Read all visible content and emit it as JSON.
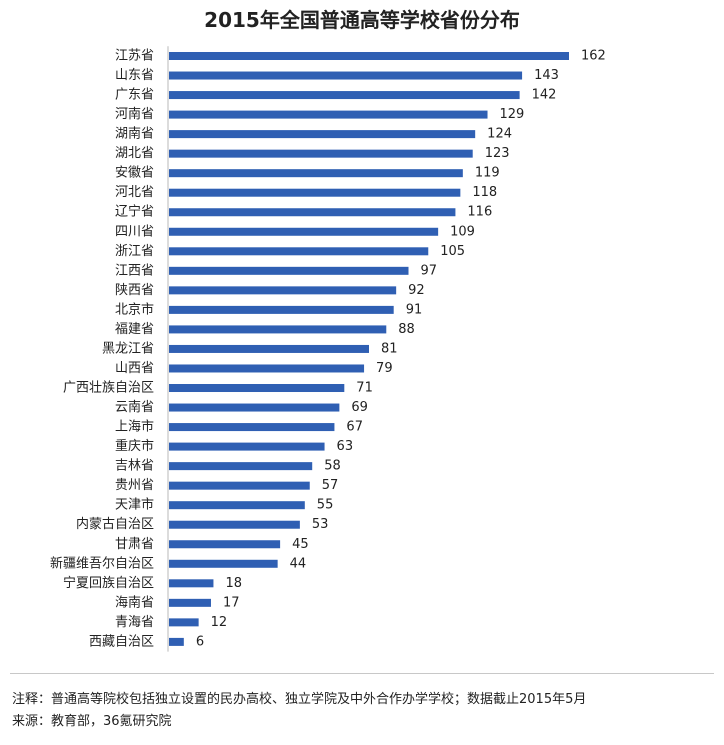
{
  "colors": {
    "bar": "#2f5fb3",
    "axis": "#b8b8b8",
    "text": "#222222"
  },
  "chart_data": {
    "type": "bar",
    "orientation": "horizontal",
    "title": "2015年全国普通高等学校省份分布",
    "xlabel": "",
    "ylabel": "",
    "grid": false,
    "legend": "none",
    "xlim": [
      0,
      162
    ],
    "categories": [
      "江苏省",
      "山东省",
      "广东省",
      "河南省",
      "湖南省",
      "湖北省",
      "安徽省",
      "河北省",
      "辽宁省",
      "四川省",
      "浙江省",
      "江西省",
      "陕西省",
      "北京市",
      "福建省",
      "黑龙江省",
      "山西省",
      "广西壮族自治区",
      "云南省",
      "上海市",
      "重庆市",
      "吉林省",
      "贵州省",
      "天津市",
      "内蒙古自治区",
      "甘肃省",
      "新疆维吾尔自治区",
      "宁夏回族自治区",
      "海南省",
      "青海省",
      "西藏自治区"
    ],
    "values": [
      162,
      143,
      142,
      129,
      124,
      123,
      119,
      118,
      116,
      109,
      105,
      97,
      92,
      91,
      88,
      81,
      79,
      71,
      69,
      67,
      63,
      58,
      57,
      55,
      53,
      45,
      44,
      18,
      17,
      12,
      6
    ]
  },
  "footer": {
    "note": "注释：普通高等院校包括独立设置的民办高校、独立学院及中外合作办学学校；数据截止2015年5月",
    "source": "来源：教育部，36氪研究院"
  }
}
